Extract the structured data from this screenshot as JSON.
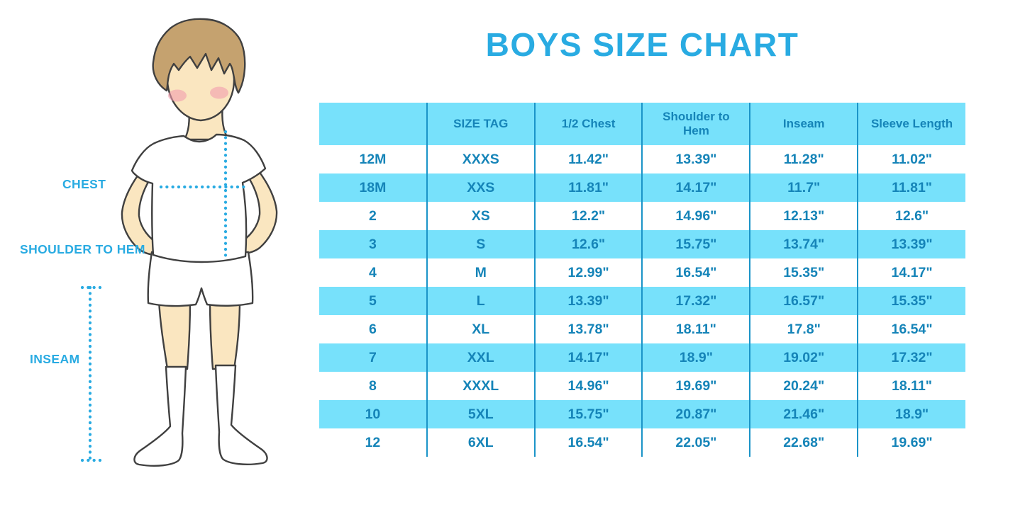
{
  "title": "BOYS SIZE CHART",
  "figure": {
    "description": "illustration of a boy in white t-shirt, shorts and knee socks with dotted measurement guides",
    "labels": {
      "chest": "CHEST",
      "shoulder_to_hem": "SHOULDER TO HEM",
      "inseam": "INSEAM"
    }
  },
  "colors": {
    "accent_blue": "#29ABE2",
    "cell_cyan": "#77E1FB",
    "grid_line_blue": "#1B94C8",
    "table_text_blue": "#1584B8",
    "skin": "#FAE6C0",
    "hair_brown": "#C5A26F",
    "blush_pink": "#F29CAD"
  },
  "chart_data": {
    "type": "table",
    "title": "BOYS SIZE CHART",
    "columns": [
      "",
      "SIZE TAG",
      "1/2 Chest",
      "Shoulder to Hem",
      "Inseam",
      "Sleeve Length"
    ],
    "rows": [
      [
        "12M",
        "XXXS",
        "11.42\"",
        "13.39\"",
        "11.28\"",
        "11.02\""
      ],
      [
        "18M",
        "XXS",
        "11.81\"",
        "14.17\"",
        "11.7\"",
        "11.81\""
      ],
      [
        "2",
        "XS",
        "12.2\"",
        "14.96\"",
        "12.13\"",
        "12.6\""
      ],
      [
        "3",
        "S",
        "12.6\"",
        "15.75\"",
        "13.74\"",
        "13.39\""
      ],
      [
        "4",
        "M",
        "12.99\"",
        "16.54\"",
        "15.35\"",
        "14.17\""
      ],
      [
        "5",
        "L",
        "13.39\"",
        "17.32\"",
        "16.57\"",
        "15.35\""
      ],
      [
        "6",
        "XL",
        "13.78\"",
        "18.11\"",
        "17.8\"",
        "16.54\""
      ],
      [
        "7",
        "XXL",
        "14.17\"",
        "18.9\"",
        "19.02\"",
        "17.32\""
      ],
      [
        "8",
        "XXXL",
        "14.96\"",
        "19.69\"",
        "20.24\"",
        "18.11\""
      ],
      [
        "10",
        "5XL",
        "15.75\"",
        "20.87\"",
        "21.46\"",
        "18.9\""
      ],
      [
        "12",
        "6XL",
        "16.54\"",
        "22.05\"",
        "22.68\"",
        "19.69\""
      ]
    ],
    "units": "inches",
    "layout_hints": {
      "row_striping": "white / cyan alternating, header cyan",
      "grid": "vertical column separators only",
      "legend_position": "none"
    }
  }
}
